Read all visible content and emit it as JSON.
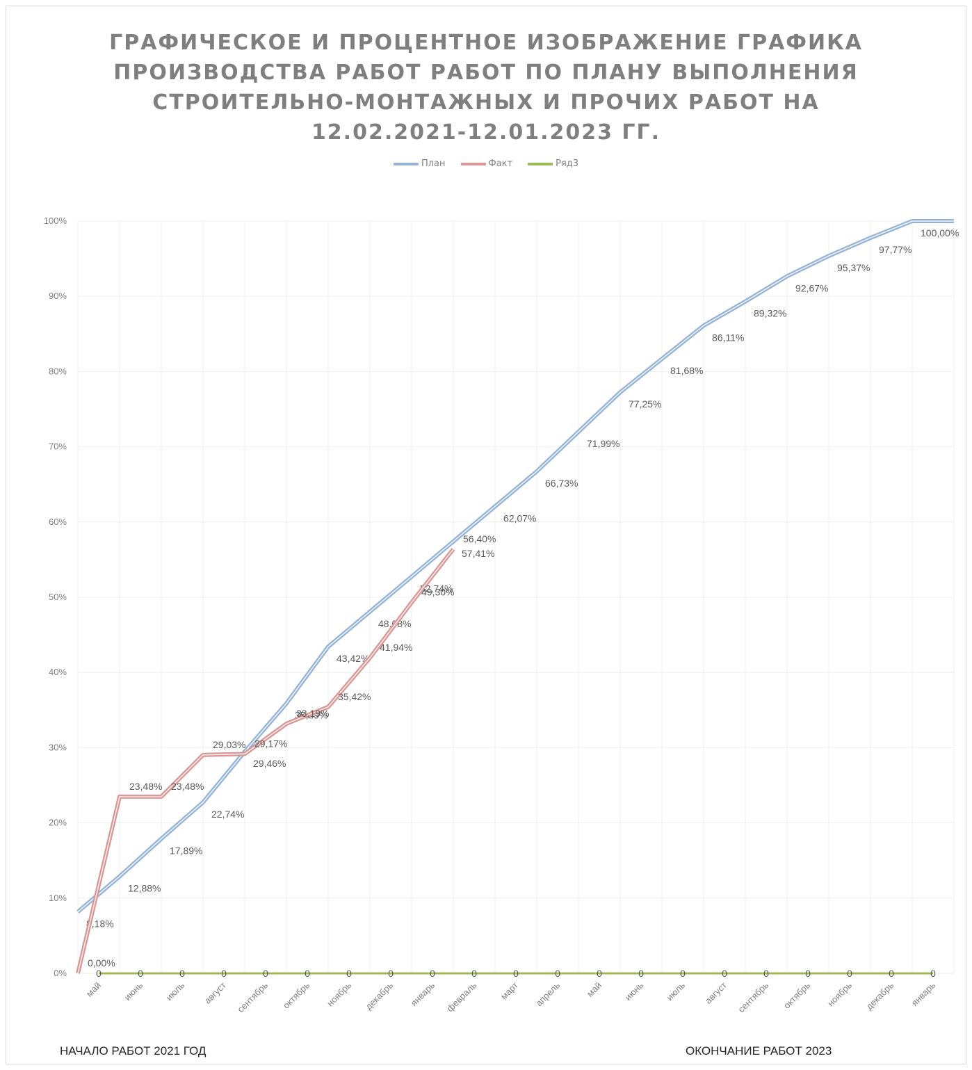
{
  "chart_data": {
    "type": "line",
    "title_lines": [
      "ГРАФИЧЕСКОЕ И ПРОЦЕНТНОЕ ИЗОБРАЖЕНИЕ ГРАФИКА",
      "ПРОИЗВОДСТВА РАБОТ РАБОТ ПО ПЛАНУ ВЫПОЛНЕНИЯ",
      "СТРОИТЕЛЬНО-МОНТАЖНЫХ И ПРОЧИХ РАБОТ НА",
      "12.02.2021-12.01.2023 ГГ."
    ],
    "categories": [
      "май",
      "июнь",
      "июль",
      "август",
      "сентябрь",
      "октябрь",
      "ноябрь",
      "декабрь",
      "январь",
      "февраль",
      "март",
      "апрель",
      "май",
      "июнь",
      "июль",
      "август",
      "сентябрь",
      "октябрь",
      "ноябрь",
      "декабрь",
      "январь"
    ],
    "ylim": [
      0,
      100
    ],
    "yticks": [
      "0%",
      "10%",
      "20%",
      "30%",
      "40%",
      "50%",
      "60%",
      "70%",
      "80%",
      "90%",
      "100%"
    ],
    "legend_position": "top",
    "series": [
      {
        "name": "План",
        "color": "#95b3d7",
        "x": [
          -0.5,
          0.5,
          1.5,
          2.5,
          3.5,
          4.5,
          5.5,
          6.5,
          7.5,
          8.5,
          9.5,
          10.5,
          11.5,
          12.5,
          13.5,
          14.5,
          15.5,
          16.5,
          17.5,
          18.5,
          19.5,
          20.5
        ],
        "values": [
          8.18,
          12.88,
          17.89,
          22.74,
          29.46,
          35.89,
          43.42,
          48.08,
          52.74,
          57.41,
          62.07,
          66.73,
          71.99,
          77.25,
          81.68,
          86.11,
          89.32,
          92.67,
          95.37,
          97.77,
          100,
          100
        ],
        "labels": [
          "8,18%",
          "12,88%",
          "17,89%",
          "22,74%",
          "29,46%",
          "35,89%",
          "43,42%",
          "48,08%",
          "52,74%",
          "57,41%",
          "62,07%",
          "66,73%",
          "71,99%",
          "77,25%",
          "81,68%",
          "86,11%",
          "89,32%",
          "92,67%",
          "95,37%",
          "97,77%",
          "100,00%",
          ""
        ]
      },
      {
        "name": "Факт",
        "color": "#d99694",
        "x": [
          -0.5,
          0.5,
          1.5,
          2.5,
          3.5,
          4.5,
          5.5,
          6.5,
          7.5,
          8.5
        ],
        "values": [
          0,
          23.48,
          23.48,
          29.03,
          29.17,
          33.19,
          35.42,
          41.94,
          49.3,
          56.4
        ],
        "labels": [
          "0,00%",
          "23,48%",
          "23,48%",
          "29,03%",
          "29,17%",
          "33,19%",
          "35,42%",
          "41,94%",
          "49,30%",
          "56,40%"
        ]
      },
      {
        "name": "Ряд3",
        "color": "#9bbb59",
        "x": [
          0,
          1,
          2,
          3,
          4,
          5,
          6,
          7,
          8,
          9,
          10,
          11,
          12,
          13,
          14,
          15,
          16,
          17,
          18,
          19,
          20
        ],
        "values": [
          0,
          0,
          0,
          0,
          0,
          0,
          0,
          0,
          0,
          0,
          0,
          0,
          0,
          0,
          0,
          0,
          0,
          0,
          0,
          0,
          0
        ],
        "labels": [
          "0",
          "0",
          "0",
          "0",
          "0",
          "0",
          "0",
          "0",
          "0",
          "0",
          "0",
          "0",
          "0",
          "0",
          "0",
          "0",
          "0",
          "0",
          "0",
          "0",
          "0"
        ]
      }
    ],
    "annotations": {
      "start": "НАЧАЛО РАБОТ 2021 ГОД",
      "end": "ОКОНЧАНИЕ РАБОТ 2023"
    }
  }
}
